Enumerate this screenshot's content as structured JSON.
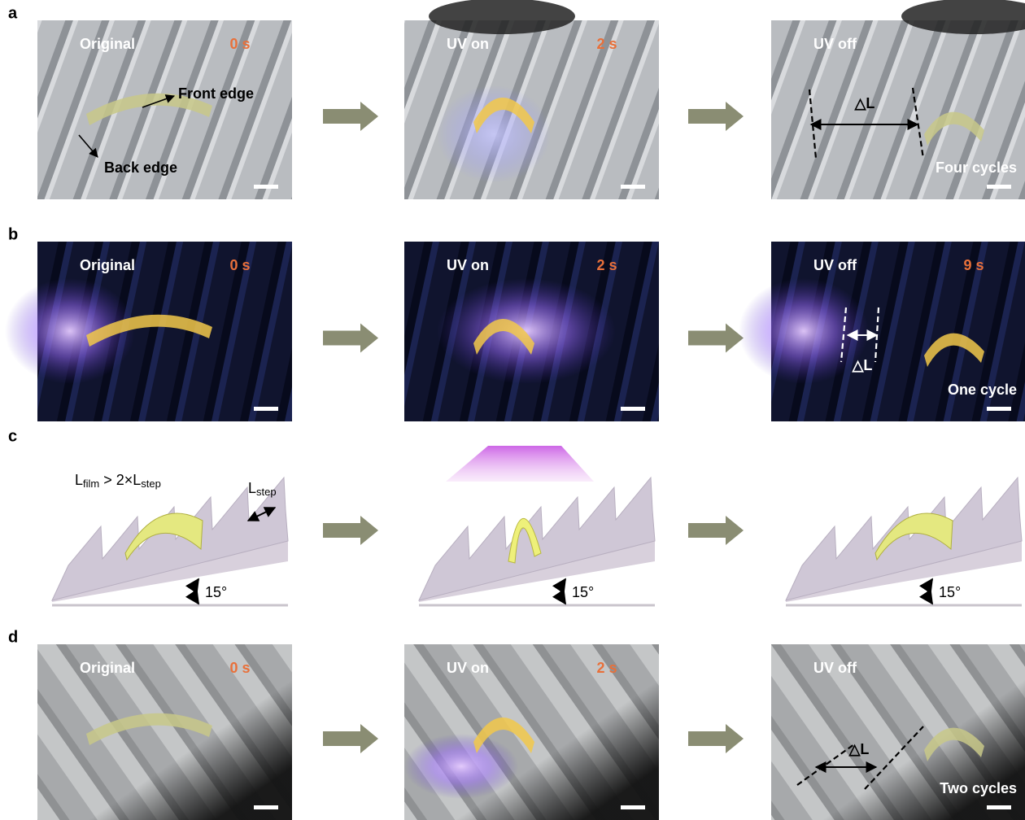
{
  "panels": [
    {
      "label": "a",
      "images": [
        {
          "caption": "Original",
          "time": "0 s",
          "labels": [
            "Front edge",
            "Back edge"
          ]
        },
        {
          "caption": "UV on",
          "time": "2 s"
        },
        {
          "caption": "UV off",
          "labels": [
            "△L"
          ],
          "note": "Four cycles"
        }
      ]
    },
    {
      "label": "b",
      "images": [
        {
          "caption": "Original",
          "time": "0 s"
        },
        {
          "caption": "UV on",
          "time": "2 s"
        },
        {
          "caption": "UV off",
          "time": "9 s",
          "labels": [
            "△L"
          ],
          "note": "One cycle"
        }
      ]
    },
    {
      "label": "c",
      "formula": [
        "L",
        "film",
        " > 2×L",
        "step"
      ],
      "step_label": [
        "L",
        "step"
      ],
      "angles": [
        "15°",
        "15°",
        "15°"
      ]
    },
    {
      "label": "d",
      "images": [
        {
          "caption": "Original",
          "time": "0 s"
        },
        {
          "caption": "UV on",
          "time": "2 s"
        },
        {
          "caption": "UV off",
          "labels": [
            "△L"
          ],
          "note": "Two cycles"
        }
      ]
    }
  ]
}
